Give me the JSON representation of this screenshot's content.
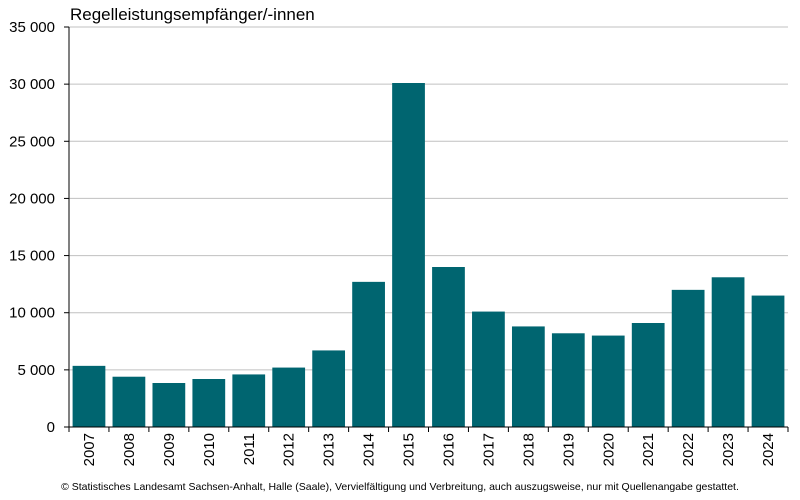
{
  "chart_data": {
    "type": "bar",
    "title": "Regelleistungsempfänger/-innen",
    "xlabel": "",
    "ylabel": "",
    "categories": [
      "2007",
      "2008",
      "2009",
      "2010",
      "2011",
      "2012",
      "2013",
      "2014",
      "2015",
      "2016",
      "2017",
      "2018",
      "2019",
      "2020",
      "2021",
      "2022",
      "2023",
      "2024"
    ],
    "values": [
      5350,
      4400,
      3850,
      4200,
      4600,
      5200,
      6700,
      12700,
      30100,
      14000,
      10100,
      8800,
      8200,
      8000,
      9100,
      12000,
      13100,
      11500
    ],
    "ylim": [
      0,
      35000
    ],
    "yticks": [
      0,
      5000,
      10000,
      15000,
      20000,
      25000,
      30000,
      35000
    ],
    "ytick_labels": [
      "0",
      "5 000",
      "10 000",
      "15 000",
      "20 000",
      "25 000",
      "30 000",
      "35 000"
    ],
    "grid": true,
    "colors": {
      "bar": "#006570",
      "grid": "#c0c0c0",
      "axis": "#000000"
    }
  },
  "footer": "© Statistisches Landesamt Sachsen-Anhalt, Halle (Saale), Vervielfältigung und Verbreitung, auch auszugsweise, nur mit Quellenangabe gestattet."
}
